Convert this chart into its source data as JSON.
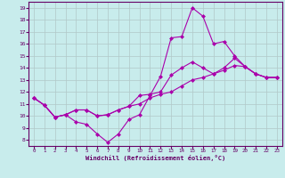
{
  "xlabel": "Windchill (Refroidissement éolien,°C)",
  "xlim": [
    -0.5,
    23.5
  ],
  "ylim": [
    7.5,
    19.5
  ],
  "xticks": [
    0,
    1,
    2,
    3,
    4,
    5,
    6,
    7,
    8,
    9,
    10,
    11,
    12,
    13,
    14,
    15,
    16,
    17,
    18,
    19,
    20,
    21,
    22,
    23
  ],
  "yticks": [
    8,
    9,
    10,
    11,
    12,
    13,
    14,
    15,
    16,
    17,
    18,
    19
  ],
  "bg_color": "#c8ecec",
  "grid_color": "#b0c8c8",
  "line_color": "#aa00aa",
  "line1_x": [
    0,
    1,
    2,
    3,
    4,
    5,
    6,
    7,
    8,
    9,
    10,
    11,
    12,
    13,
    14,
    15,
    16,
    17,
    18,
    19,
    20,
    21,
    22,
    23
  ],
  "line1_y": [
    11.5,
    10.9,
    9.9,
    10.1,
    9.5,
    9.3,
    8.5,
    7.8,
    8.5,
    9.7,
    10.1,
    11.7,
    13.3,
    16.5,
    16.6,
    19.0,
    18.3,
    16.0,
    16.2,
    15.0,
    14.1,
    13.5,
    13.2,
    13.2
  ],
  "line2_x": [
    0,
    1,
    2,
    3,
    4,
    5,
    6,
    7,
    8,
    9,
    10,
    11,
    12,
    13,
    14,
    15,
    16,
    17,
    18,
    19,
    20,
    21,
    22,
    23
  ],
  "line2_y": [
    11.5,
    10.9,
    9.9,
    10.1,
    10.5,
    10.5,
    10.0,
    10.1,
    10.5,
    10.8,
    11.7,
    11.8,
    12.0,
    13.4,
    14.0,
    14.5,
    14.0,
    13.5,
    14.0,
    14.8,
    14.1,
    13.5,
    13.2,
    13.2
  ],
  "line3_x": [
    0,
    1,
    2,
    3,
    4,
    5,
    6,
    7,
    8,
    9,
    10,
    11,
    12,
    13,
    14,
    15,
    16,
    17,
    18,
    19,
    20,
    21,
    22,
    23
  ],
  "line3_y": [
    11.5,
    10.9,
    9.9,
    10.1,
    10.5,
    10.5,
    10.0,
    10.1,
    10.5,
    10.8,
    11.0,
    11.5,
    11.8,
    12.0,
    12.5,
    13.0,
    13.2,
    13.5,
    13.8,
    14.2,
    14.1,
    13.5,
    13.2,
    13.2
  ],
  "marker": "D",
  "markersize": 2.0,
  "linewidth": 0.8
}
